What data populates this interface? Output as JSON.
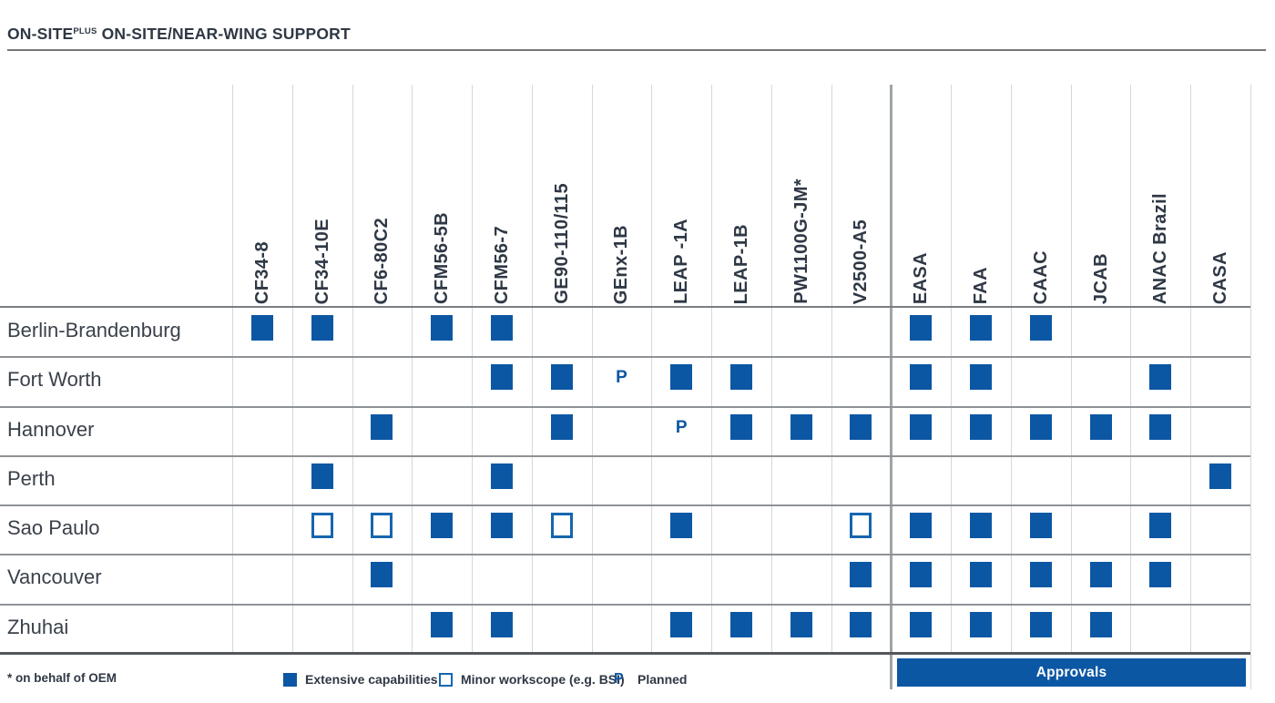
{
  "title": {
    "prefix": "ON-SITE",
    "superscript": "PLUS",
    "suffix": " ON-SITE/NEAR-WING SUPPORT"
  },
  "colors": {
    "accent_blue": "#0C57A4",
    "open_square_border": "#1566AF",
    "dark_text": "#2F3845"
  },
  "chart_data": {
    "type": "table",
    "title": "ON-SITEPLUS ON-SITE/NEAR-WING SUPPORT",
    "columns": {
      "engines": [
        "CF34-8",
        "CF34-10E",
        "CF6-80C2",
        "CFM56-5B",
        "CFM56-7",
        "GE90-110/115",
        "GEnx-1B",
        "LEAP -1A",
        "LEAP-1B",
        "PW1100G-JM*",
        "V2500-A5"
      ],
      "approvals": [
        "EASA",
        "FAA",
        "CAAC",
        "JCAB",
        "ANAC Brazil",
        "CASA"
      ]
    },
    "cell_codes": {
      "F": "Extensive capabilities",
      "O": "Minor workscope (e.g. BSI)",
      "P": "Planned",
      "": "none"
    },
    "rows": [
      {
        "location": "Berlin-Brandenburg",
        "cells": [
          "F",
          "F",
          "",
          "F",
          "F",
          "",
          "",
          "",
          "",
          "",
          "",
          "F",
          "F",
          "F",
          "",
          "",
          ""
        ]
      },
      {
        "location": "Fort Worth",
        "cells": [
          "",
          "",
          "",
          "",
          "F",
          "F",
          "P",
          "F",
          "F",
          "",
          "",
          "F",
          "F",
          "",
          "",
          "F",
          ""
        ]
      },
      {
        "location": "Hannover",
        "cells": [
          "",
          "",
          "F",
          "",
          "",
          "F",
          "",
          "P",
          "F",
          "F",
          "F",
          "F",
          "F",
          "F",
          "F",
          "F",
          ""
        ]
      },
      {
        "location": "Perth",
        "cells": [
          "",
          "F",
          "",
          "",
          "F",
          "",
          "",
          "",
          "",
          "",
          "",
          "",
          "",
          "",
          "",
          "",
          "F"
        ]
      },
      {
        "location": "Sao Paulo",
        "cells": [
          "",
          "O",
          "O",
          "F",
          "F",
          "O",
          "",
          "F",
          "",
          "",
          "O",
          "F",
          "F",
          "F",
          "",
          "F",
          ""
        ]
      },
      {
        "location": "Vancouver",
        "cells": [
          "",
          "",
          "F",
          "",
          "",
          "",
          "",
          "",
          "",
          "",
          "F",
          "F",
          "F",
          "F",
          "F",
          "F",
          ""
        ]
      },
      {
        "location": "Zhuhai",
        "cells": [
          "",
          "",
          "",
          "F",
          "F",
          "",
          "",
          "F",
          "F",
          "F",
          "F",
          "F",
          "F",
          "F",
          "F",
          "",
          ""
        ]
      }
    ],
    "approvals_band_label": "Approvals",
    "footnote": "* on behalf of OEM",
    "legend": {
      "planned_symbol": "P"
    }
  },
  "legend": {
    "extensive_label": "Extensive capabilities",
    "minor_label": "Minor workscope (e.g. BSI)",
    "planned_symbol": "P",
    "planned_label": "Planned",
    "footnote": "* on behalf of OEM"
  }
}
